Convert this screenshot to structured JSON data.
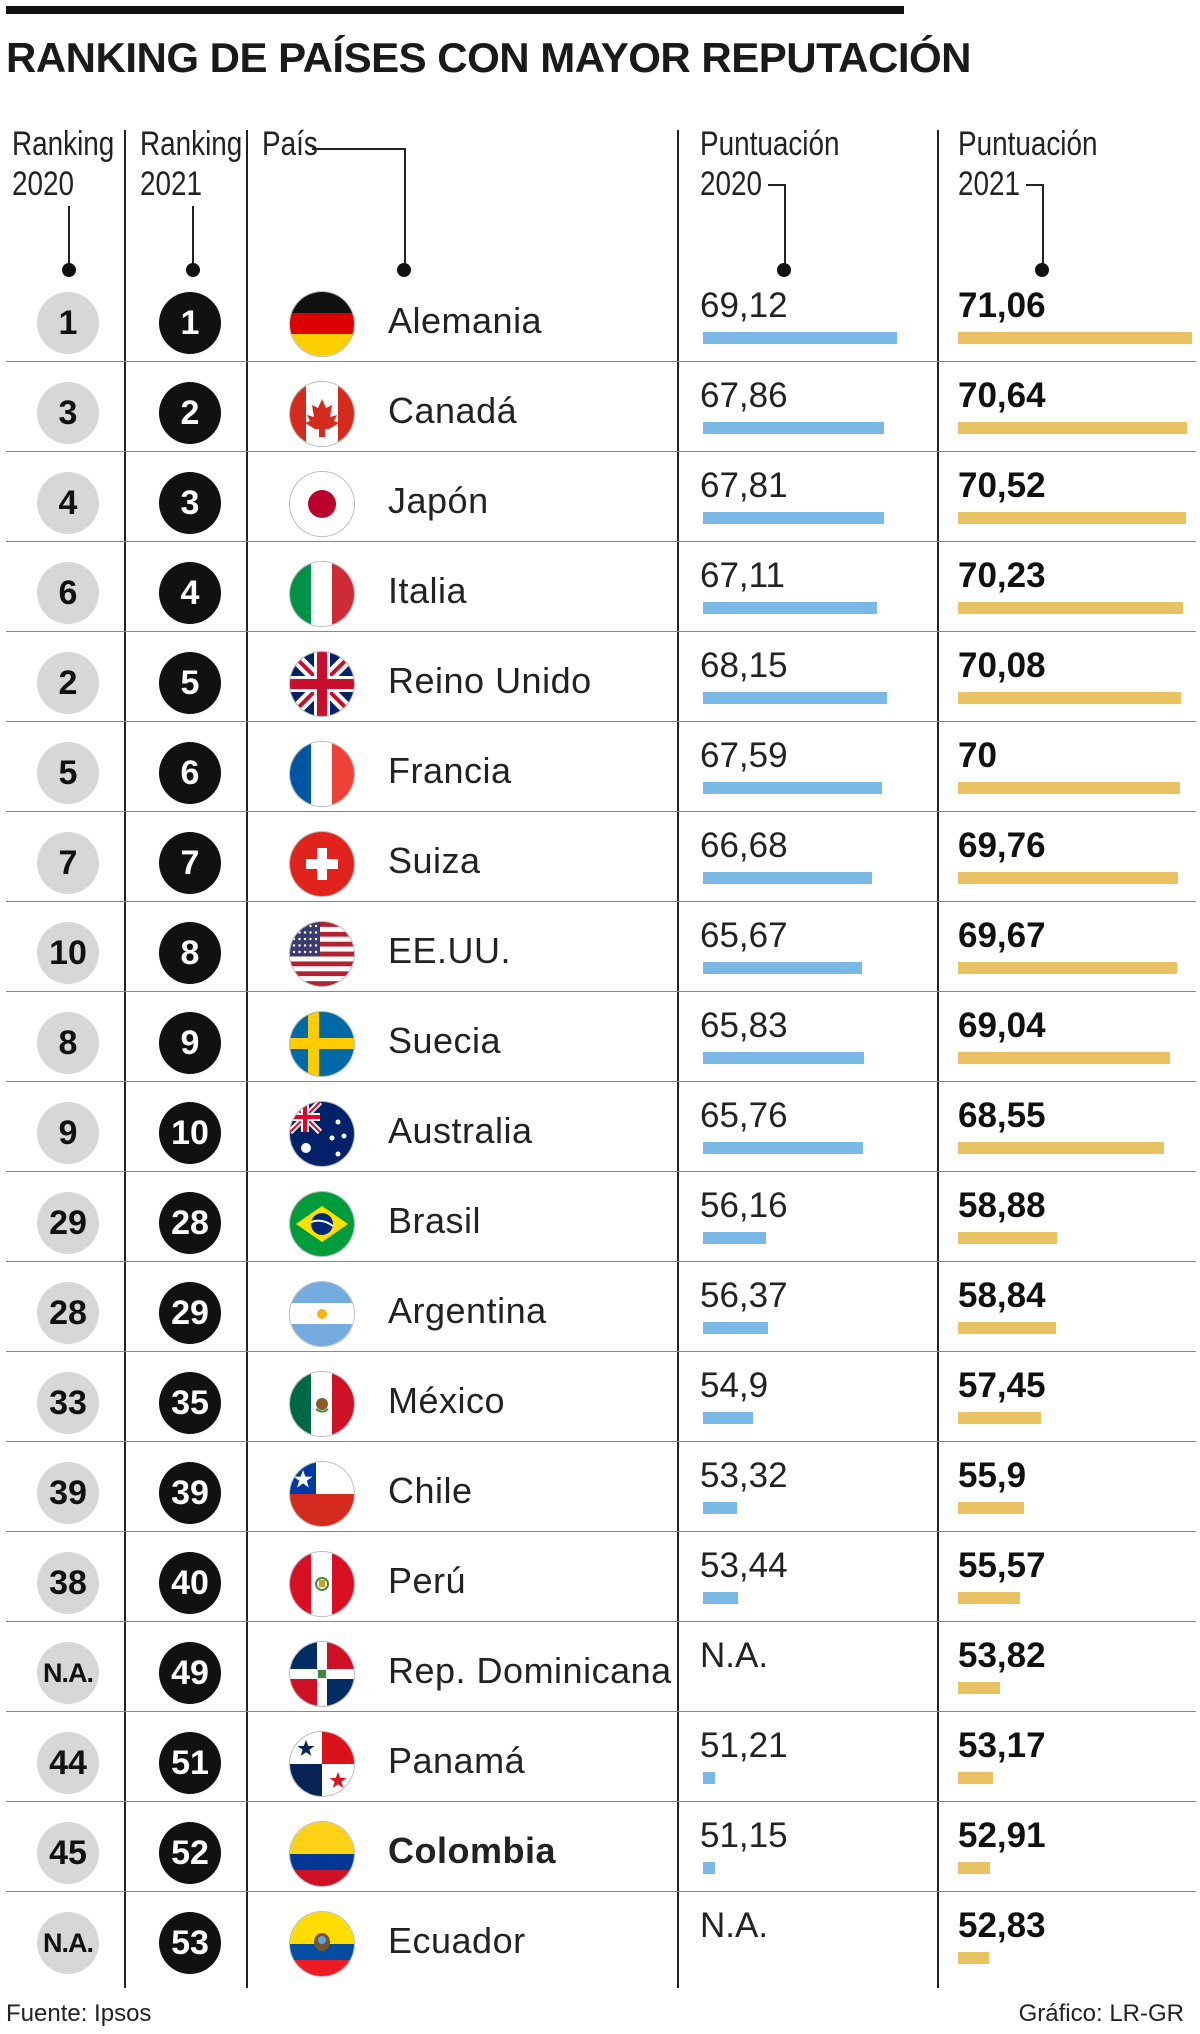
{
  "title": "RANKING DE PAÍSES CON MAYOR REPUTACIÓN",
  "headers": {
    "rank2020": [
      "Ranking",
      "2020"
    ],
    "rank2021": [
      "Ranking",
      "2021"
    ],
    "country": "País",
    "score2020": [
      "Puntuación",
      "2020"
    ],
    "score2021": [
      "Puntuación",
      "2021"
    ]
  },
  "colors": {
    "bar2020": "#7ab9e6",
    "bar2021": "#e9c363",
    "rank2020_circle": "#d7d7d7",
    "rank2021_circle": "#111111"
  },
  "chart_data": {
    "type": "table",
    "title": "RANKING DE PAÍSES CON MAYOR REPUTACIÓN",
    "columns": [
      "Ranking 2020",
      "Ranking 2021",
      "País",
      "Puntuación 2020",
      "Puntuación 2021"
    ],
    "bar_scale_min": 50,
    "rows": [
      {
        "rank2020": "1",
        "rank2021": "1",
        "country": "Alemania",
        "flag": "germany-flag-icon",
        "score2020": "69,12",
        "score2021": "71,06"
      },
      {
        "rank2020": "3",
        "rank2021": "2",
        "country": "Canadá",
        "flag": "canada-flag-icon",
        "score2020": "67,86",
        "score2021": "70,64"
      },
      {
        "rank2020": "4",
        "rank2021": "3",
        "country": "Japón",
        "flag": "japan-flag-icon",
        "score2020": "67,81",
        "score2021": "70,52"
      },
      {
        "rank2020": "6",
        "rank2021": "4",
        "country": "Italia",
        "flag": "italy-flag-icon",
        "score2020": "67,11",
        "score2021": "70,23"
      },
      {
        "rank2020": "2",
        "rank2021": "5",
        "country": "Reino Unido",
        "flag": "united-kingdom-flag-icon",
        "score2020": "68,15",
        "score2021": "70,08"
      },
      {
        "rank2020": "5",
        "rank2021": "6",
        "country": "Francia",
        "flag": "france-flag-icon",
        "score2020": "67,59",
        "score2021": "70"
      },
      {
        "rank2020": "7",
        "rank2021": "7",
        "country": "Suiza",
        "flag": "switzerland-flag-icon",
        "score2020": "66,68",
        "score2021": "69,76"
      },
      {
        "rank2020": "10",
        "rank2021": "8",
        "country": "EE.UU.",
        "flag": "usa-flag-icon",
        "score2020": "65,67",
        "score2021": "69,67"
      },
      {
        "rank2020": "8",
        "rank2021": "9",
        "country": "Suecia",
        "flag": "sweden-flag-icon",
        "score2020": "65,83",
        "score2021": "69,04"
      },
      {
        "rank2020": "9",
        "rank2021": "10",
        "country": "Australia",
        "flag": "australia-flag-icon",
        "score2020": "65,76",
        "score2021": "68,55"
      },
      {
        "rank2020": "29",
        "rank2021": "28",
        "country": "Brasil",
        "flag": "brazil-flag-icon",
        "score2020": "56,16",
        "score2021": "58,88"
      },
      {
        "rank2020": "28",
        "rank2021": "29",
        "country": "Argentina",
        "flag": "argentina-flag-icon",
        "score2020": "56,37",
        "score2021": "58,84"
      },
      {
        "rank2020": "33",
        "rank2021": "35",
        "country": "México",
        "flag": "mexico-flag-icon",
        "score2020": "54,9",
        "score2021": "57,45"
      },
      {
        "rank2020": "39",
        "rank2021": "39",
        "country": "Chile",
        "flag": "chile-flag-icon",
        "score2020": "53,32",
        "score2021": "55,9"
      },
      {
        "rank2020": "38",
        "rank2021": "40",
        "country": "Perú",
        "flag": "peru-flag-icon",
        "score2020": "53,44",
        "score2021": "55,57"
      },
      {
        "rank2020": "N.A.",
        "rank2021": "49",
        "country": "Rep. Dominicana",
        "flag": "dominican-republic-flag-icon",
        "score2020": "N.A.",
        "score2021": "53,82"
      },
      {
        "rank2020": "44",
        "rank2021": "51",
        "country": "Panamá",
        "flag": "panama-flag-icon",
        "score2020": "51,21",
        "score2021": "53,17"
      },
      {
        "rank2020": "45",
        "rank2021": "52",
        "country": "Colombia",
        "flag": "colombia-flag-icon",
        "score2020": "51,15",
        "score2021": "52,91",
        "highlight": true
      },
      {
        "rank2020": "N.A.",
        "rank2021": "53",
        "country": "Ecuador",
        "flag": "ecuador-flag-icon",
        "score2020": "N.A.",
        "score2021": "52,83"
      }
    ]
  },
  "footer": {
    "source": "Fuente: Ipsos",
    "credit": "Gráfico: LR-GR"
  }
}
